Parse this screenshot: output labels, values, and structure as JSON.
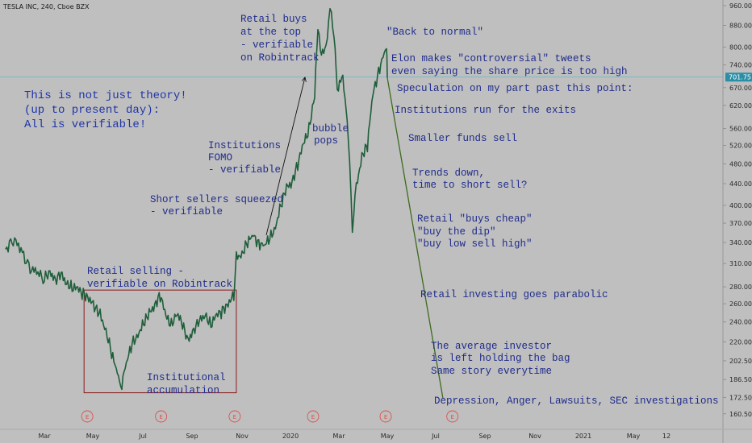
{
  "header": {
    "symbol_title": "TESLA INC, 240, Cboe BZX"
  },
  "colors": {
    "background": "#bfbfbf",
    "price_line": "#1e5e3a",
    "projection_line": "#3d6b1e",
    "annotation_text": "#1f2c8c",
    "box_border": "#8b1a1a",
    "current_price_line": "#5fb8c9",
    "current_price_tag": "#2a8fa6",
    "earnings_marker": "#d9534f"
  },
  "chart_data": {
    "type": "line",
    "y_axis": {
      "position": "right",
      "scale": "log",
      "ylim": [
        157,
        970
      ],
      "ticks": [
        960.0,
        880.0,
        800.0,
        740.0,
        670.0,
        620.0,
        560.0,
        520.0,
        480.0,
        440.0,
        400.0,
        370.0,
        340.0,
        310.0,
        280.0,
        260.0,
        240.0,
        220.0,
        202.5,
        186.5,
        172.5,
        160.5
      ],
      "tick_labels": [
        "960.00",
        "880.00",
        "800.00",
        "740.00",
        "670.00",
        "620.00",
        "560.00",
        "520.00",
        "480.00",
        "440.00",
        "400.00",
        "370.00",
        "340.00",
        "310.00",
        "280.00",
        "260.00",
        "240.00",
        "220.00",
        "202.50",
        "186.50",
        "172.50",
        "160.50"
      ],
      "current_price": 701.75,
      "current_price_label": "701.75"
    },
    "x_axis": {
      "labels": [
        {
          "text": "Mar",
          "date": "2019-03-01"
        },
        {
          "text": "May",
          "date": "2019-05-01"
        },
        {
          "text": "Jul",
          "date": "2019-07-01"
        },
        {
          "text": "Sep",
          "date": "2019-09-01"
        },
        {
          "text": "Nov",
          "date": "2019-11-01"
        },
        {
          "text": "2020",
          "date": "2020-01-01"
        },
        {
          "text": "Mar",
          "date": "2020-03-01"
        },
        {
          "text": "May",
          "date": "2020-05-01"
        },
        {
          "text": "Jul",
          "date": "2020-07-01"
        },
        {
          "text": "Sep",
          "date": "2020-09-01"
        },
        {
          "text": "Nov",
          "date": "2020-11-01"
        },
        {
          "text": "2021",
          "date": "2021-01-01"
        },
        {
          "text": "May",
          "date": "2021-05-01"
        },
        {
          "text": "12",
          "date": "2021-07-12"
        }
      ]
    },
    "series": [
      {
        "points": [
          [
            "2019-01-25",
            330
          ],
          [
            "2019-02-01",
            345
          ],
          [
            "2019-02-08",
            330
          ],
          [
            "2019-02-15",
            305
          ],
          [
            "2019-02-22",
            298
          ],
          [
            "2019-03-01",
            290
          ],
          [
            "2019-03-08",
            300
          ],
          [
            "2019-03-15",
            288
          ],
          [
            "2019-03-22",
            295
          ],
          [
            "2019-03-29",
            285
          ],
          [
            "2019-04-05",
            280
          ],
          [
            "2019-04-12",
            276
          ],
          [
            "2019-04-19",
            272
          ],
          [
            "2019-04-26",
            268
          ],
          [
            "2019-05-03",
            255
          ],
          [
            "2019-05-10",
            248
          ],
          [
            "2019-05-17",
            232
          ],
          [
            "2019-05-24",
            208
          ],
          [
            "2019-05-31",
            192
          ],
          [
            "2019-06-04",
            180
          ],
          [
            "2019-06-11",
            200
          ],
          [
            "2019-06-18",
            218
          ],
          [
            "2019-06-25",
            228
          ],
          [
            "2019-07-02",
            238
          ],
          [
            "2019-07-09",
            248
          ],
          [
            "2019-07-16",
            260
          ],
          [
            "2019-07-23",
            270
          ],
          [
            "2019-07-30",
            245
          ],
          [
            "2019-08-06",
            238
          ],
          [
            "2019-08-13",
            250
          ],
          [
            "2019-08-20",
            236
          ],
          [
            "2019-08-27",
            222
          ],
          [
            "2019-09-03",
            232
          ],
          [
            "2019-09-10",
            240
          ],
          [
            "2019-09-17",
            248
          ],
          [
            "2019-09-24",
            238
          ],
          [
            "2019-10-01",
            246
          ],
          [
            "2019-10-08",
            252
          ],
          [
            "2019-10-15",
            262
          ],
          [
            "2019-10-22",
            268
          ],
          [
            "2019-10-25",
            318
          ],
          [
            "2019-11-01",
            325
          ],
          [
            "2019-11-08",
            340
          ],
          [
            "2019-11-15",
            350
          ],
          [
            "2019-11-22",
            340
          ],
          [
            "2019-11-29",
            335
          ],
          [
            "2019-12-06",
            345
          ],
          [
            "2019-12-13",
            365
          ],
          [
            "2019-12-20",
            400
          ],
          [
            "2019-12-27",
            430
          ],
          [
            "2020-01-03",
            445
          ],
          [
            "2020-01-10",
            480
          ],
          [
            "2020-01-17",
            520
          ],
          [
            "2020-01-24",
            560
          ],
          [
            "2020-01-31",
            650
          ],
          [
            "2020-02-04",
            880
          ],
          [
            "2020-02-07",
            780
          ],
          [
            "2020-02-14",
            800
          ],
          [
            "2020-02-19",
            950
          ],
          [
            "2020-02-24",
            840
          ],
          [
            "2020-02-28",
            670
          ],
          [
            "2020-03-06",
            700
          ],
          [
            "2020-03-10",
            600
          ],
          [
            "2020-03-13",
            540
          ],
          [
            "2020-03-18",
            361
          ],
          [
            "2020-03-23",
            430
          ],
          [
            "2020-03-30",
            500
          ],
          [
            "2020-04-06",
            520
          ],
          [
            "2020-04-13",
            650
          ],
          [
            "2020-04-20",
            720
          ],
          [
            "2020-04-27",
            780
          ],
          [
            "2020-04-30",
            800
          ],
          [
            "2020-05-01",
            700
          ]
        ]
      },
      {
        "name": "projection",
        "points": [
          [
            "2020-05-01",
            700
          ],
          [
            "2020-07-10",
            172
          ]
        ]
      }
    ],
    "annotations": [
      {
        "text": "This is not just theory!",
        "style": "large"
      },
      {
        "text": "(up to present day):",
        "style": "large"
      },
      {
        "text": "All is verifiable!",
        "style": "large"
      },
      {
        "text": "Retail selling -"
      },
      {
        "text": "verifiable on Robintrack"
      },
      {
        "text": "Institutional"
      },
      {
        "text": "accumulation"
      },
      {
        "text": "Short sellers squeezed"
      },
      {
        "text": "- verifiable"
      },
      {
        "text": "Institutions"
      },
      {
        "text": "FOMO"
      },
      {
        "text": "- verifiable"
      },
      {
        "text": "Retail buys"
      },
      {
        "text": "at the top"
      },
      {
        "text": "- verifiable"
      },
      {
        "text": "on Robintrack"
      },
      {
        "text": "bubble"
      },
      {
        "text": "pops"
      },
      {
        "text": "\"Back to normal\""
      },
      {
        "text": "Elon makes \"controversial\" tweets"
      },
      {
        "text": "even saying the share price is too high"
      },
      {
        "text": "Speculation on my part past this point:"
      },
      {
        "text": "Institutions run for the exits"
      },
      {
        "text": "Smaller funds sell"
      },
      {
        "text": "Trends down,"
      },
      {
        "text": "time to short sell?"
      },
      {
        "text": "Retail \"buys cheap\""
      },
      {
        "text": "\"buy the dip\""
      },
      {
        "text": "\"buy low sell high\""
      },
      {
        "text": "Retail investing goes parabolic"
      },
      {
        "text": "The average investor"
      },
      {
        "text": "is left holding the bag"
      },
      {
        "text": "Same story everytime"
      },
      {
        "text": "Depression, Anger, Lawsuits, SEC investigations"
      }
    ],
    "earnings_markers": {
      "label": "E",
      "dates": [
        "2019-04-24",
        "2019-07-24",
        "2019-10-23",
        "2020-01-29",
        "2020-04-29",
        "2020-07-22"
      ]
    },
    "accumulation_box": {
      "x_range": [
        "2019-04-20",
        "2019-10-25"
      ],
      "y_range": [
        176,
        276
      ]
    }
  }
}
